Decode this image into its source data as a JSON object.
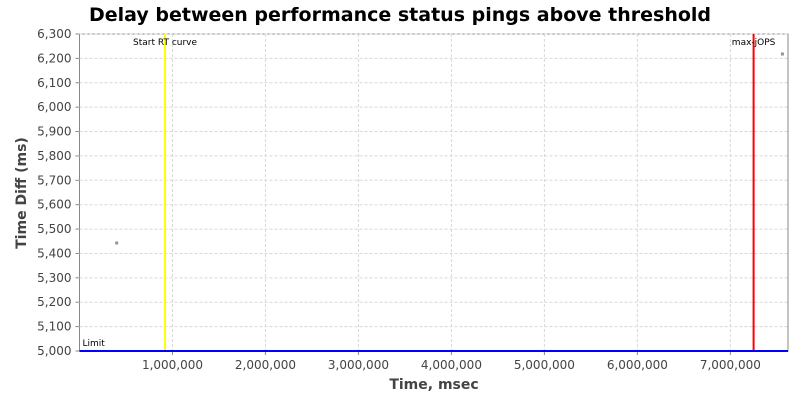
{
  "chart_data": {
    "type": "scatter",
    "title": "Delay between performance status pings above threshold",
    "xlabel": "Time, msec",
    "ylabel": "Time Diff (ms)",
    "xlim": [
      0,
      7620000
    ],
    "ylim": [
      5000,
      6300
    ],
    "grid": true,
    "xticks": [
      1000000,
      2000000,
      3000000,
      4000000,
      5000000,
      6000000,
      7000000
    ],
    "xtick_labels": [
      "1,000,000",
      "2,000,000",
      "3,000,000",
      "4,000,000",
      "5,000,000",
      "6,000,000",
      "7,000,000"
    ],
    "yticks": [
      5000,
      5100,
      5200,
      5300,
      5400,
      5500,
      5600,
      5700,
      5800,
      5900,
      6000,
      6100,
      6200,
      6300
    ],
    "ytick_labels": [
      "5,000",
      "5,100",
      "5,200",
      "5,300",
      "5,400",
      "5,500",
      "5,600",
      "5,700",
      "5,800",
      "5,900",
      "6,000",
      "6,100",
      "6,200",
      "6,300"
    ],
    "points": [
      {
        "x": 400000,
        "y": 5443
      },
      {
        "x": 7560000,
        "y": 6218
      }
    ],
    "point_color": "#a09090",
    "markers": [
      {
        "label": "Start RT curve",
        "x": 920000,
        "color": "#ffff00",
        "orientation": "vertical"
      },
      {
        "label": "max-jOPS",
        "x": 7250000,
        "color": "#ff0000",
        "orientation": "vertical"
      },
      {
        "label": "Limit",
        "y": 5000,
        "color": "#0000ff",
        "orientation": "horizontal"
      }
    ]
  }
}
